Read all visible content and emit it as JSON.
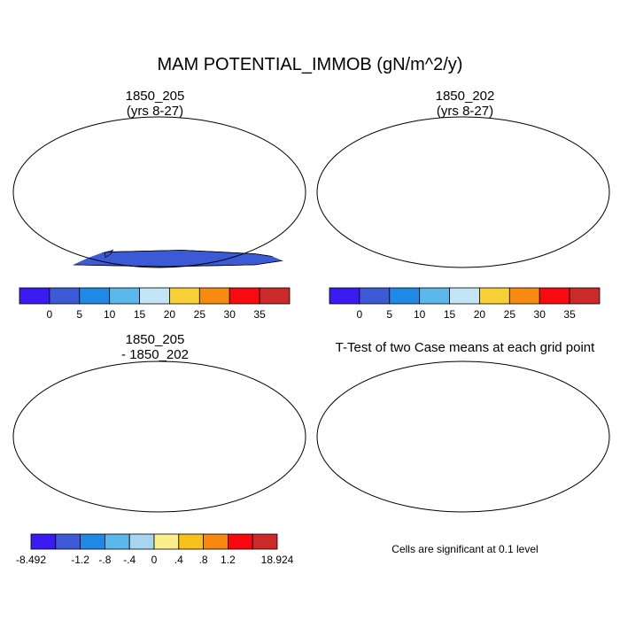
{
  "main_title": "MAM POTENTIAL_IMMOB (gN/m^2/y)",
  "panels": [
    {
      "title_line1": "1850_205",
      "title_line2": "(yrs 8-27)"
    },
    {
      "title_line1": "1850_202",
      "title_line2": "(yrs 8-27)"
    },
    {
      "title_line1": "1850_205",
      "title_line2": "- 1850_202"
    },
    {
      "title_line1": "T-Test of two Case means at each grid point",
      "title_line2": ""
    }
  ],
  "colorbar_top": {
    "colors": [
      "#3a1cf2",
      "#3c5ad6",
      "#1f8ae6",
      "#5ab8ec",
      "#c3e4f4",
      "#f7d035",
      "#f78a10",
      "#f80a10",
      "#cc2a2a"
    ],
    "labels": [
      "0",
      "5",
      "10",
      "15",
      "20",
      "25",
      "30",
      "35"
    ]
  },
  "colorbar_diff": {
    "colors": [
      "#3a1cf2",
      "#3c5ad6",
      "#1f8ae6",
      "#5ab8ec",
      "#a7d4ee",
      "#fbef8c",
      "#f7c21a",
      "#f7870f",
      "#f8080f",
      "#cc2a2a"
    ],
    "labels": [
      "-8.492",
      "-1.2",
      "-.8",
      "-.4",
      "0",
      ".4",
      ".8",
      "1.2",
      "18.924"
    ]
  },
  "significance_note": "Cells are significant at 0.1 level",
  "colors": {
    "land_base": "#3c5ad6",
    "diff_base": "#fbef8c",
    "sig": "#e80000",
    "ocean": "#ffffff"
  }
}
